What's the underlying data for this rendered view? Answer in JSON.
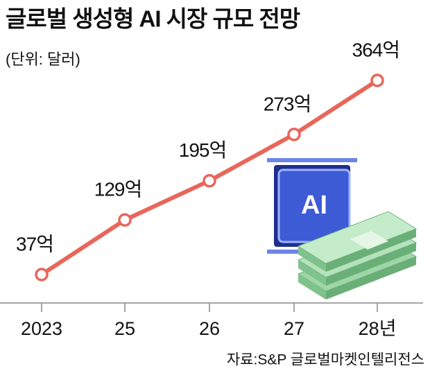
{
  "chart_data": {
    "type": "line",
    "title": "글로벌 생성형 AI 시장 규모 전망",
    "subtitle": "(단위: 달러)",
    "source": "자료:S&P 글로벌마켓인텔리전스",
    "illustration_text": "AI",
    "categories": [
      "2023",
      "25",
      "26",
      "27",
      "28년"
    ],
    "series": [
      {
        "name": "시장 규모",
        "color": "#e8665a",
        "values": [
          37,
          129,
          195,
          273,
          364
        ],
        "value_labels": [
          "37억",
          "129억",
          "195억",
          "273억",
          "364억"
        ]
      }
    ]
  }
}
